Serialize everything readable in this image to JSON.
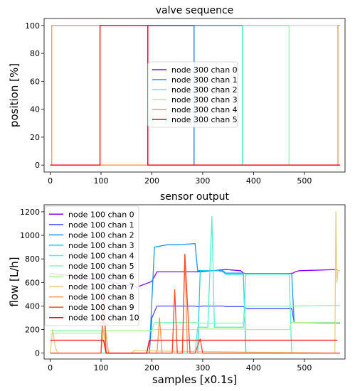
{
  "chart_data": [
    {
      "type": "line",
      "title": "valve sequence",
      "xlabel": "",
      "ylabel": "position [%]",
      "xlim": [
        -12,
        580
      ],
      "ylim": [
        -5,
        105
      ],
      "xticks": [
        0,
        100,
        200,
        300,
        400,
        500
      ],
      "yticks": [
        0,
        20,
        40,
        60,
        80,
        100
      ],
      "legend_location": "center",
      "series": [
        {
          "name": "node 300 chan 0",
          "color": "#8000ff",
          "x": [
            0,
            192,
            192,
            283,
            283,
            570
          ],
          "y": [
            0,
            0,
            100,
            100,
            0,
            0
          ]
        },
        {
          "name": "node 300 chan 1",
          "color": "#1996f3",
          "x": [
            0,
            283,
            283,
            378,
            378,
            570
          ],
          "y": [
            0,
            0,
            100,
            100,
            0,
            0
          ]
        },
        {
          "name": "node 300 chan 2",
          "color": "#4df3ce",
          "x": [
            0,
            378,
            378,
            470,
            470,
            570
          ],
          "y": [
            0,
            0,
            100,
            100,
            0,
            0
          ]
        },
        {
          "name": "node 300 chan 3",
          "color": "#b2f396",
          "x": [
            0,
            470,
            470,
            566,
            566,
            570
          ],
          "y": [
            0,
            0,
            100,
            100,
            0,
            0
          ]
        },
        {
          "name": "node 300 chan 4",
          "color": "#ff964f",
          "x": [
            0,
            3,
            3,
            98,
            98,
            566,
            566,
            570
          ],
          "y": [
            0,
            0,
            100,
            100,
            0,
            0,
            100,
            100
          ]
        },
        {
          "name": "node 300 chan 5",
          "color": "#ff0000",
          "x": [
            0,
            98,
            98,
            192,
            192,
            570
          ],
          "y": [
            0,
            0,
            100,
            100,
            0,
            0
          ]
        }
      ]
    },
    {
      "type": "line",
      "title": "sensor output",
      "xlabel": "samples [x0.1s]",
      "ylabel": "flow [L/h]",
      "xlim": [
        -12,
        580
      ],
      "ylim": [
        -50,
        1260
      ],
      "xticks": [
        0,
        100,
        200,
        300,
        400,
        500
      ],
      "yticks": [
        0,
        200,
        400,
        600,
        800,
        1000,
        1200
      ],
      "legend_location": "upper left",
      "series": [
        {
          "name": "node 100 chan 0",
          "color": "#8000ff",
          "x": [
            0,
            100,
            170,
            195,
            200,
            210,
            250,
            290,
            320,
            345,
            375,
            380,
            385,
            470,
            478,
            482,
            490,
            565
          ],
          "y": [
            680,
            620,
            560,
            600,
            610,
            690,
            690,
            690,
            700,
            710,
            700,
            680,
            675,
            675,
            680,
            690,
            700,
            710
          ]
        },
        {
          "name": "node 100 chan 1",
          "color": "#4a4bf9",
          "x": [
            0,
            195,
            200,
            210,
            250,
            285,
            290,
            300,
            340,
            345,
            380,
            385,
            475,
            480,
            570
          ],
          "y": [
            0,
            0,
            300,
            400,
            400,
            400,
            395,
            400,
            400,
            395,
            395,
            380,
            380,
            260,
            255
          ]
        },
        {
          "name": "node 100 chan 2",
          "color": "#1996f3",
          "x": [
            0,
            195,
            205,
            230,
            250,
            285,
            290,
            300,
            340,
            345,
            380,
            385,
            475,
            480,
            570
          ],
          "y": [
            0,
            0,
            900,
            920,
            920,
            930,
            700,
            700,
            700,
            680,
            680,
            675,
            675,
            260,
            255
          ]
        },
        {
          "name": "node 100 chan 3",
          "color": "#1acfe8",
          "x": [
            0,
            290,
            295,
            300,
            330,
            340,
            345,
            380,
            385,
            400,
            570
          ],
          "y": [
            0,
            0,
            700,
            700,
            700,
            690,
            670,
            670,
            0,
            0,
            0
          ]
        },
        {
          "name": "node 100 chan 4",
          "color": "#4df3ce",
          "x": [
            0,
            200,
            250,
            285,
            290,
            310,
            318,
            323,
            330,
            380,
            385,
            470,
            475,
            480,
            570
          ],
          "y": [
            0,
            0,
            0,
            0,
            220,
            220,
            1160,
            220,
            220,
            220,
            670,
            670,
            0,
            0,
            0
          ]
        },
        {
          "name": "node 100 chan 5",
          "color": "#80ffb4",
          "x": [
            0,
            200,
            205,
            285,
            290,
            380,
            385,
            470,
            475,
            570
          ],
          "y": [
            190,
            190,
            260,
            260,
            255,
            255,
            400,
            400,
            400,
            405
          ]
        },
        {
          "name": "node 100 chan 6",
          "color": "#b2f396",
          "x": [
            0,
            10,
            100,
            105,
            200,
            205,
            285,
            290,
            380,
            385,
            470,
            475,
            570
          ],
          "y": [
            160,
            170,
            170,
            190,
            190,
            200,
            200,
            205,
            205,
            200,
            200,
            260,
            260
          ]
        },
        {
          "name": "node 100 chan 7",
          "color": "#e6cf7f",
          "x": [
            0,
            5,
            10,
            15,
            20,
            100,
            105,
            110,
            160,
            165,
            560,
            562,
            564,
            566,
            570
          ],
          "y": [
            0,
            200,
            50,
            0,
            0,
            0,
            200,
            0,
            0,
            20,
            0,
            1200,
            600,
            700,
            700
          ]
        },
        {
          "name": "node 100 chan 8",
          "color": "#ff964f",
          "x": [
            0,
            100,
            105,
            110,
            115,
            120,
            210,
            215,
            220,
            260,
            265,
            270,
            300,
            570
          ],
          "y": [
            0,
            0,
            400,
            150,
            0,
            0,
            0,
            300,
            0,
            0,
            840,
            0,
            0,
            0
          ]
        },
        {
          "name": "node 100 chan 9",
          "color": "#ff4b26",
          "x": [
            0,
            100,
            105,
            110,
            160,
            195,
            200,
            230,
            240,
            245,
            250,
            255,
            260,
            265,
            275,
            285,
            295,
            300,
            570
          ],
          "y": [
            0,
            0,
            500,
            0,
            0,
            0,
            0,
            0,
            0,
            540,
            0,
            0,
            0,
            840,
            0,
            0,
            120,
            0,
            0
          ]
        },
        {
          "name": "node 100 chan 10",
          "color": "#ff0000",
          "x": [
            0,
            100,
            105,
            110,
            190,
            195,
            200,
            565
          ],
          "y": [
            110,
            110,
            110,
            0,
            0,
            110,
            110,
            110
          ]
        }
      ]
    }
  ]
}
